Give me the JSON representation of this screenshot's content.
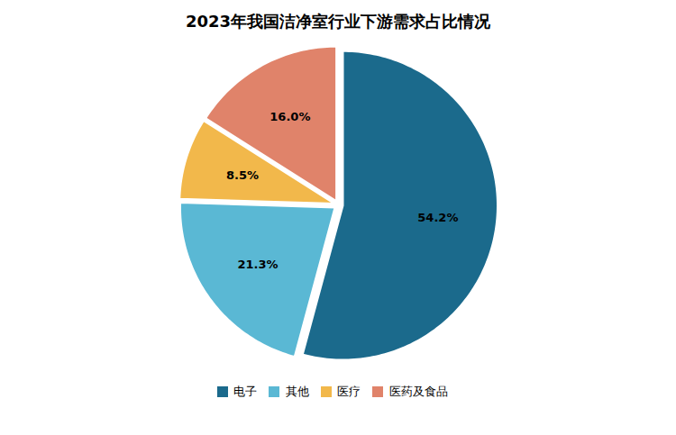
{
  "chart_data": {
    "type": "pie",
    "title": "2023年我国洁净室行业下游需求占比情况",
    "categories": [
      "电子",
      "其他",
      "医疗",
      "医药及食品"
    ],
    "values": [
      54.2,
      21.3,
      8.5,
      16.0
    ],
    "value_labels": [
      "54.2%",
      "21.3%",
      "8.5%",
      "16.0%"
    ],
    "colors": [
      "#1b6a8c",
      "#5ab8d4",
      "#f2b84b",
      "#e0836a"
    ],
    "data_labels": true,
    "legend": "bottom"
  }
}
